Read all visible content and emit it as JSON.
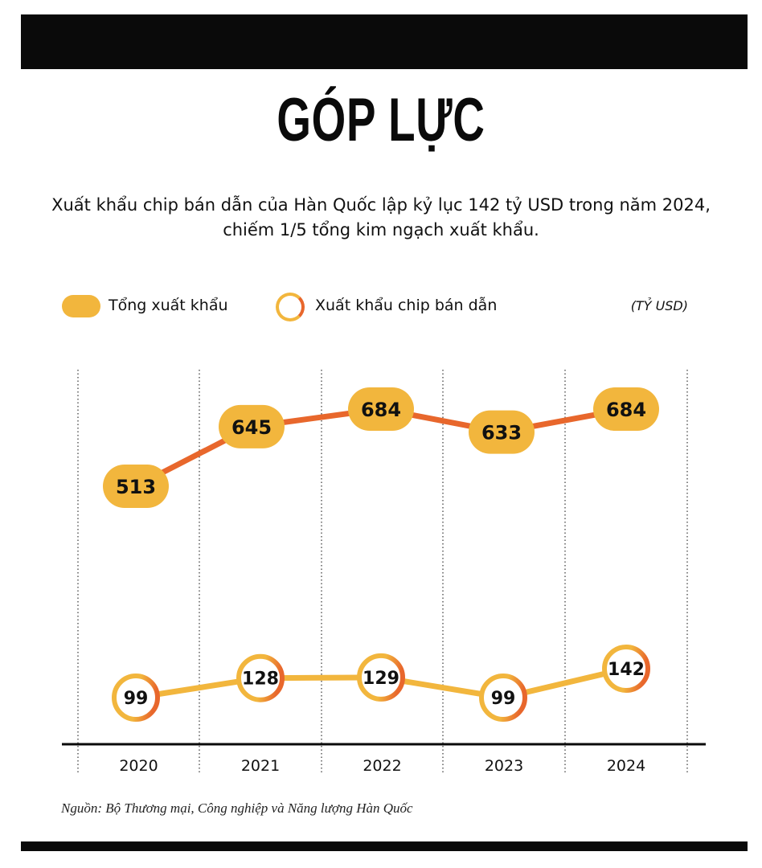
{
  "title": "GÓP LỰC",
  "subtitle": "Xuất khẩu chip bán dẫn của Hàn Quốc lập kỷ lục 142 tỷ USD trong năm 2024, chiếm 1/5 tổng kim ngạch xuất khẩu.",
  "legend": {
    "total": "Tổng xuất khẩu",
    "chip": "Xuất khẩu chip bán dẫn",
    "unit": "(TỶ USD)"
  },
  "source": "Nguồn: Bộ Thương mại, Công nghiệp và Năng lượng Hàn Quốc",
  "colors": {
    "yellow": "#f2b63d",
    "orange": "#e8672c",
    "black": "#0a0a0a"
  },
  "chart_data": {
    "type": "line",
    "categories": [
      "2020",
      "2021",
      "2022",
      "2023",
      "2024"
    ],
    "series": [
      {
        "name": "Tổng xuất khẩu",
        "values": [
          513,
          645,
          684,
          633,
          684
        ],
        "labels": [
          "513",
          "645",
          "684",
          "633",
          "684"
        ]
      },
      {
        "name": "Xuất khẩu chip bán dẫn",
        "values": [
          99,
          128,
          129,
          99,
          142
        ],
        "labels": [
          "99",
          "128",
          "129",
          "99",
          "142"
        ]
      }
    ],
    "grid": "vertical dotted",
    "legend_position": "top-left"
  }
}
